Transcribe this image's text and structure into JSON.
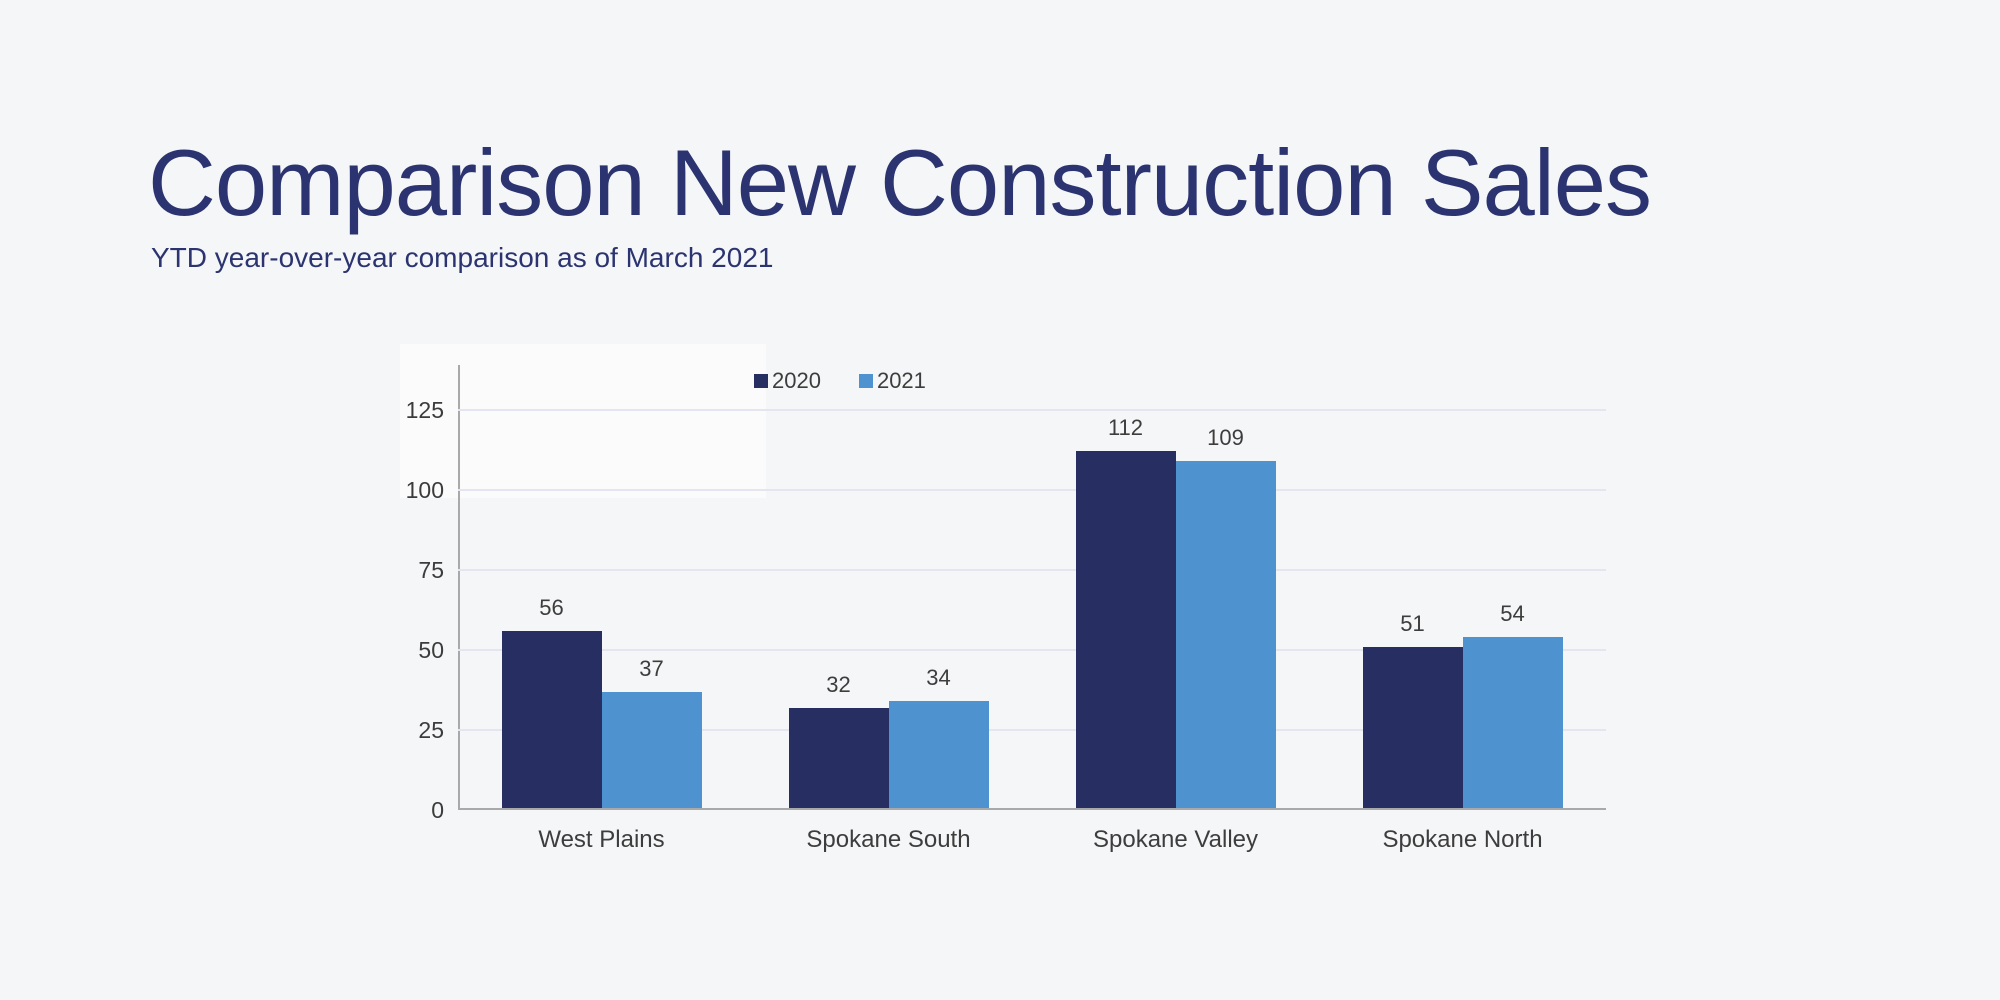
{
  "slide": {
    "title": "Comparison New Construction Sales",
    "subtitle": "YTD year-over-year comparison as of March 2021"
  },
  "colors": {
    "background": "#f5f6f7",
    "title_text": "#2b3470",
    "subtitle_text": "#2b3470",
    "label_text": "#3d3d3d",
    "axis_line": "#a9a9a9",
    "gridline": "#e3e6f1",
    "series_2020": "#272e61",
    "series_2021": "#4e92cf"
  },
  "chart_data": {
    "type": "bar",
    "title": "",
    "xlabel": "",
    "ylabel": "",
    "categories": [
      "West Plains",
      "Spokane South",
      "Spokane Valley",
      "Spokane North"
    ],
    "series": [
      {
        "name": "2020",
        "color": "#272e61",
        "values": [
          56,
          32,
          112,
          51
        ]
      },
      {
        "name": "2021",
        "color": "#4e92cf",
        "values": [
          37,
          34,
          109,
          54
        ]
      }
    ],
    "y_ticks": [
      0,
      25,
      50,
      75,
      100,
      125
    ],
    "ylim": [
      0,
      139
    ],
    "grid": true,
    "legend_position": "top",
    "value_labels": true
  }
}
